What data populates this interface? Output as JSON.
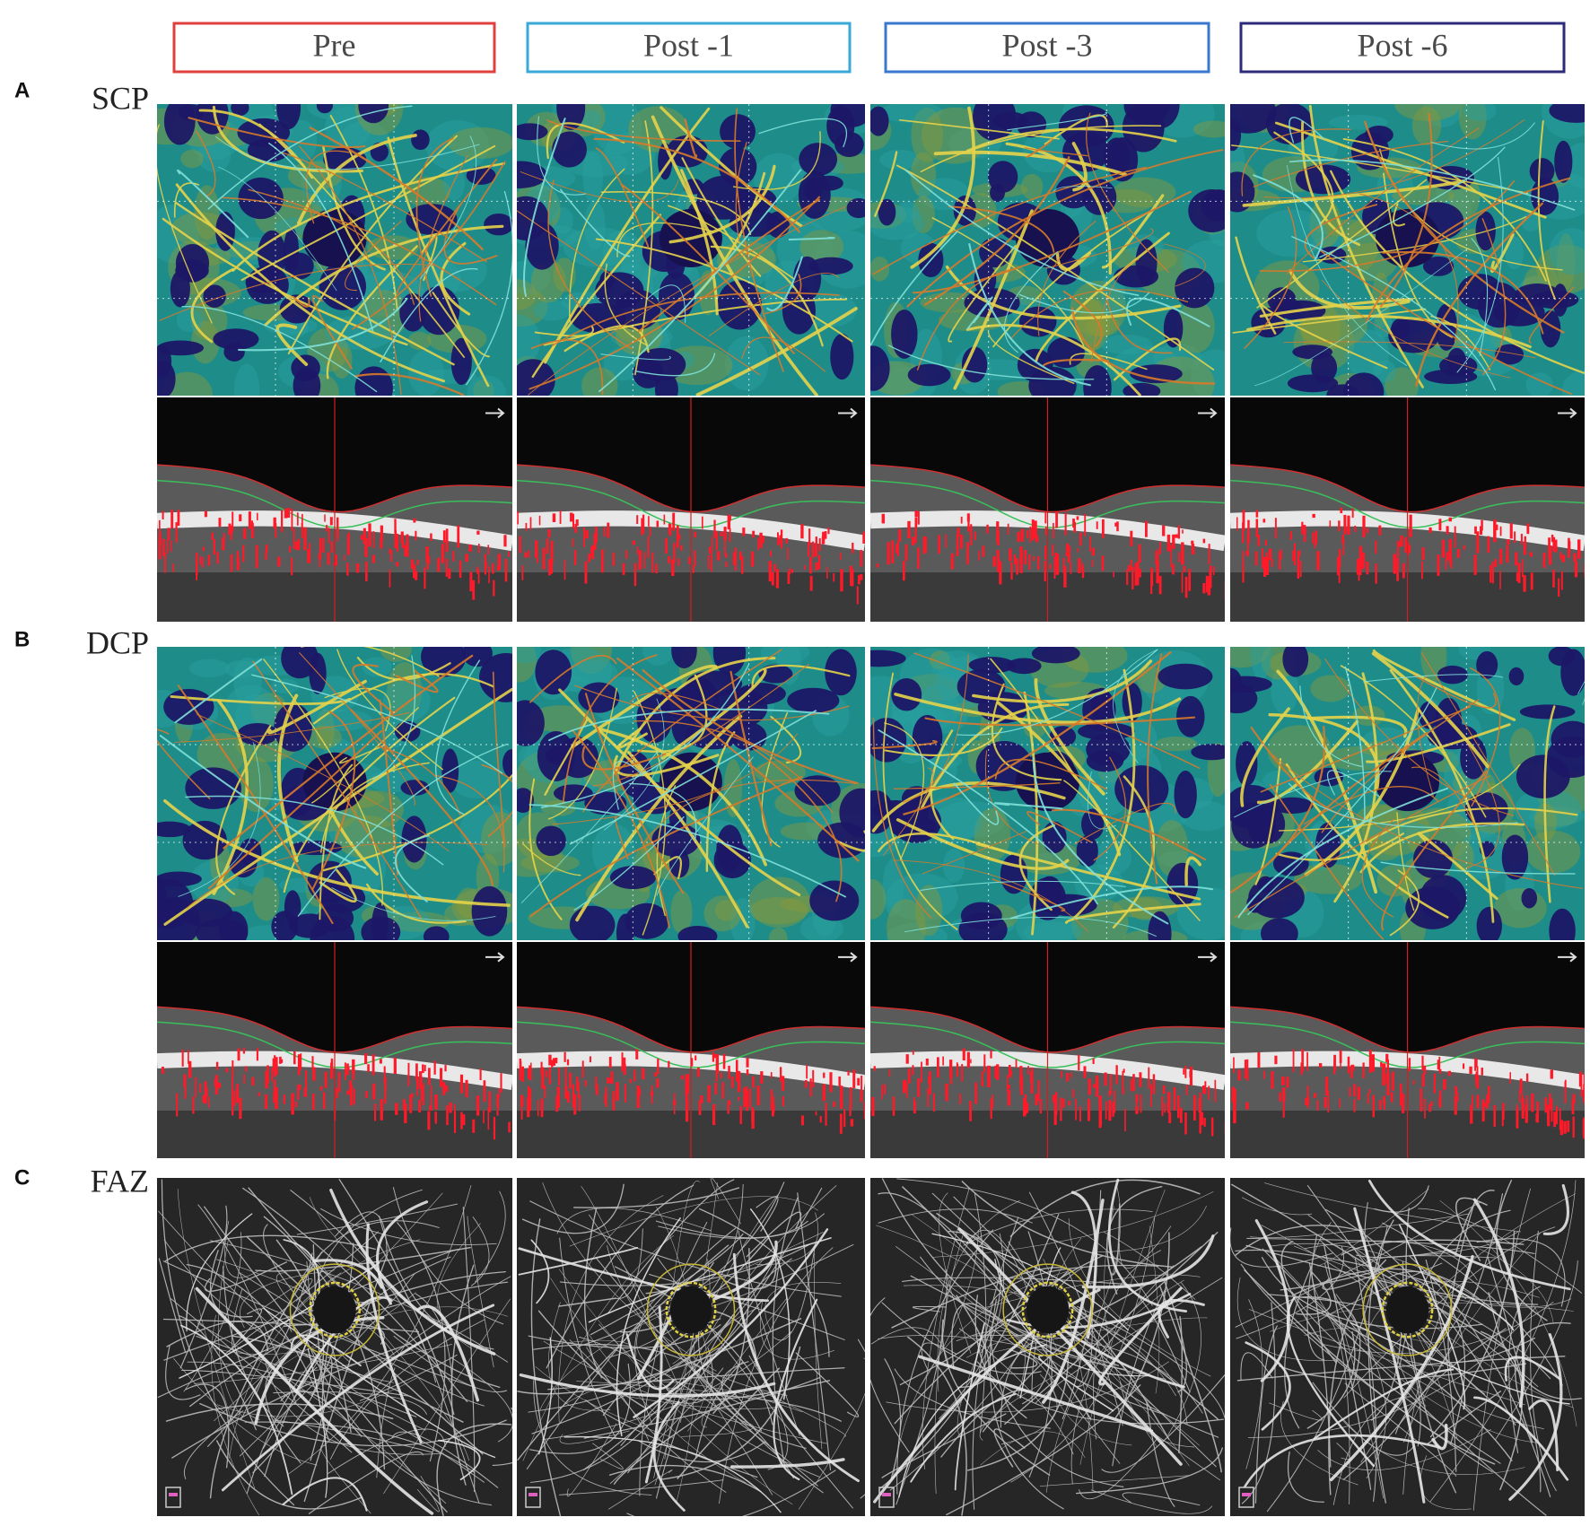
{
  "columns": [
    {
      "label": "Pre",
      "color": "#e0403c"
    },
    {
      "label": "Post -1",
      "color": "#3aa9d8"
    },
    {
      "label": "Post -3",
      "color": "#3a78d0"
    },
    {
      "label": "Post -6",
      "color": "#2e2a7a"
    }
  ],
  "rows": [
    {
      "letter": "A",
      "label": "SCP"
    },
    {
      "letter": "B",
      "label": "DCP"
    },
    {
      "letter": "C",
      "label": "FAZ"
    }
  ]
}
